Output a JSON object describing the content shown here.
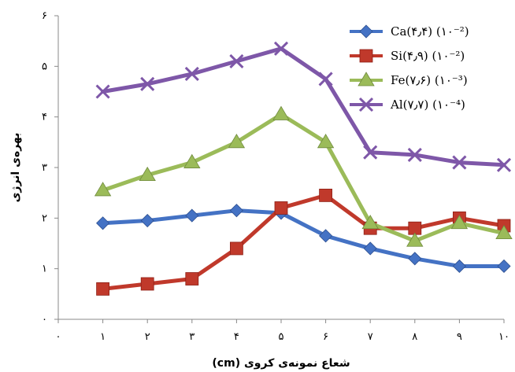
{
  "chart_data": {
    "type": "line",
    "title": "",
    "xlabel": "شعاع نمونه‌ی کروی (cm)",
    "ylabel": "بهره‌ی انرژی",
    "x": [
      1,
      2,
      3,
      4,
      5,
      6,
      7,
      8,
      9,
      10
    ],
    "x_tick_labels": [
      "۰",
      "۱",
      "۲",
      "۳",
      "۴",
      "۵",
      "۶",
      "۷",
      "۸",
      "۹",
      "۱۰"
    ],
    "xlim": [
      0,
      10
    ],
    "ylim": [
      0,
      6
    ],
    "y_ticks": [
      0,
      1,
      2,
      3,
      4,
      5,
      6
    ],
    "y_tick_labels": [
      "۰",
      "۱",
      "۲",
      "۳",
      "۴",
      "۵",
      "۶"
    ],
    "grid": false,
    "legend_position": "top-right",
    "series": [
      {
        "name": "Ca(۴٫۴) (۱۰⁻²)",
        "color": "#4472C4",
        "marker": "diamond",
        "values": [
          1.9,
          1.95,
          2.05,
          2.15,
          2.1,
          1.65,
          1.4,
          1.2,
          1.05,
          1.05
        ]
      },
      {
        "name": "Si(۴٫۹) (۱۰⁻²)",
        "color": "#C0392B",
        "marker": "square",
        "values": [
          0.6,
          0.7,
          0.8,
          1.4,
          2.2,
          2.45,
          1.8,
          1.8,
          2.0,
          1.85
        ]
      },
      {
        "name": "Fe(۷٫۶) (۱۰⁻³)",
        "color": "#9BBB59",
        "marker": "triangle",
        "values": [
          2.55,
          2.85,
          3.1,
          3.5,
          4.05,
          3.5,
          1.9,
          1.55,
          1.9,
          1.7
        ]
      },
      {
        "name": "Al(۷٫۷) (۱۰⁻⁴)",
        "color": "#7E57A8",
        "marker": "x",
        "values": [
          4.5,
          4.65,
          4.85,
          5.1,
          5.35,
          4.75,
          3.3,
          3.25,
          3.1,
          3.05
        ]
      }
    ]
  }
}
